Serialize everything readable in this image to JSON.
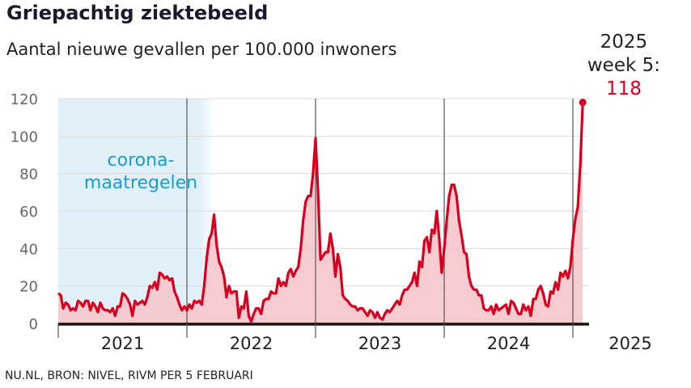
{
  "header": {
    "title": "Griepachtig ziektebeeld",
    "subtitle": "Aantal nieuwe gevallen per 100.000 inwoners"
  },
  "footer": {
    "source": "NU.NL, BRON: NIVEL, RIVM PER 5 FEBRUARI"
  },
  "annotation": {
    "line1": "2025",
    "line2": "week 5:",
    "value": "118"
  },
  "shaded_region": {
    "label_line1": "corona-",
    "label_line2": "maatregelen",
    "from": "2021 week 1",
    "to": "2022 week 12"
  },
  "colors": {
    "line": "#d8001e",
    "area": "#f5c6cb",
    "shade": "#e1eff8",
    "shade_text": "#1a9ad6",
    "axis_text": "#666666"
  },
  "chart_data": {
    "type": "area",
    "title": "Griepachtig ziektebeeld",
    "ylabel": "Aantal nieuwe gevallen per 100.000 inwoners",
    "xlabel": "",
    "ylim": [
      0,
      120
    ],
    "yticks": [
      "0",
      "20",
      "40",
      "60",
      "80",
      "100",
      "120"
    ],
    "xtick_labels": [
      "2021",
      "2022",
      "2023",
      "2024",
      "2025"
    ],
    "grid": true,
    "x_unit": "week",
    "series": [
      {
        "year": 2021,
        "values": [
          16,
          15,
          8,
          11,
          10,
          7,
          8,
          7,
          12,
          11,
          9,
          12,
          12,
          7,
          11,
          9,
          6,
          11,
          8,
          7,
          7,
          6,
          8,
          4,
          9,
          9,
          16,
          15,
          13,
          10,
          4,
          12,
          10,
          11,
          12,
          10,
          14,
          20,
          19,
          22,
          18,
          27,
          26,
          24,
          25,
          23,
          24,
          17,
          14,
          10,
          7,
          9
        ]
      },
      {
        "year": 2022,
        "values": [
          7,
          10,
          8,
          12,
          11,
          12,
          10,
          20,
          35,
          45,
          48,
          58,
          42,
          33,
          30,
          25,
          14,
          20,
          16,
          17,
          17,
          3,
          9,
          8,
          17,
          4,
          1,
          5,
          8,
          8,
          5,
          12,
          13,
          13,
          17,
          16,
          16,
          24,
          20,
          22,
          20,
          27,
          29,
          25,
          28,
          30,
          40,
          55,
          65,
          68,
          68,
          80
        ]
      },
      {
        "year": 2023,
        "values": [
          99,
          70,
          34,
          36,
          38,
          38,
          48,
          40,
          25,
          37,
          30,
          15,
          13,
          12,
          10,
          9,
          9,
          7,
          8,
          8,
          6,
          4,
          7,
          6,
          3,
          6,
          3,
          2,
          5,
          7,
          6,
          8,
          10,
          12,
          10,
          15,
          18,
          18,
          20,
          22,
          27,
          20,
          33,
          30,
          44,
          46,
          38,
          50,
          48,
          60,
          45,
          27
        ]
      },
      {
        "year": 2024,
        "values": [
          40,
          55,
          68,
          74,
          74,
          68,
          55,
          47,
          38,
          37,
          25,
          20,
          18,
          18,
          15,
          15,
          8,
          7,
          7,
          9,
          5,
          10,
          7,
          8,
          9,
          10,
          5,
          12,
          11,
          8,
          5,
          5,
          10,
          7,
          9,
          4,
          13,
          13,
          18,
          20,
          16,
          10,
          9,
          17,
          16,
          22,
          18,
          27,
          25,
          28,
          24,
          30
        ]
      },
      {
        "year": 2025,
        "values": [
          45,
          56,
          62,
          85,
          118
        ]
      }
    ]
  }
}
